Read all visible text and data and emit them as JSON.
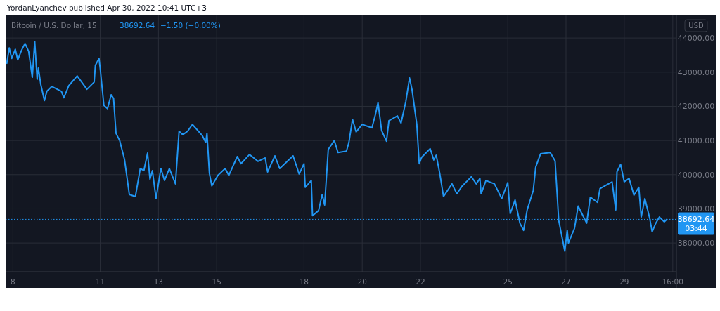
{
  "chart_data": {
    "type": "line",
    "title": "Bitcoin / U.S. Dollar, 15",
    "ylabel": "USD",
    "annotations": [
      "YordanLyanchev published Apr 30, 2022 10:41 UTC+3",
      "38692.64",
      "−1.50 (−0.00%)",
      "03:44"
    ],
    "xlim": [
      "2022-04-07T18:00",
      "2022-04-30T19:00"
    ],
    "xticks": [
      {
        "value": "2022-04-08",
        "label": "8"
      },
      {
        "value": "2022-04-11",
        "label": "11"
      },
      {
        "value": "2022-04-13",
        "label": "13"
      },
      {
        "value": "2022-04-15",
        "label": "15"
      },
      {
        "value": "2022-04-18",
        "label": "18"
      },
      {
        "value": "2022-04-20",
        "label": "20"
      },
      {
        "value": "2022-04-22",
        "label": "22"
      },
      {
        "value": "2022-04-25",
        "label": "25"
      },
      {
        "value": "2022-04-27",
        "label": "27"
      },
      {
        "value": "2022-04-29",
        "label": "29"
      },
      {
        "value": "2022-04-30T16:00",
        "label": "16:00"
      }
    ],
    "ylim": [
      37160,
      44660
    ],
    "yticks": [
      {
        "value": 38000,
        "label": "38000.00"
      },
      {
        "value": 39000,
        "label": "39000.00"
      },
      {
        "value": 40000,
        "label": "40000.00"
      },
      {
        "value": 41000,
        "label": "41000.00"
      },
      {
        "value": 42000,
        "label": "42000.00"
      },
      {
        "value": 43000,
        "label": "43000.00"
      },
      {
        "value": 44000,
        "label": "44000.00"
      }
    ],
    "grid": true,
    "line_style": "solid",
    "marker": "none",
    "ref_lines": [
      {
        "axis": "y",
        "value": 38692.64,
        "label": "38692.64",
        "color": "#2196f3",
        "line_style": "dotted"
      }
    ],
    "series": [
      {
        "color": "#2196f3",
        "x": [
          "2022-04-07T19:00",
          "2022-04-07T21:00",
          "2022-04-07T23:00",
          "2022-04-08T02:00",
          "2022-04-08T04:00",
          "2022-04-08T07:00",
          "2022-04-08T10:00",
          "2022-04-08T13:00",
          "2022-04-08T16:00",
          "2022-04-08T18:00",
          "2022-04-08T20:00",
          "2022-04-08T21:00",
          "2022-04-08T23:00",
          "2022-04-09T02:00",
          "2022-04-09T04:00",
          "2022-04-09T08:00",
          "2022-04-09T16:00",
          "2022-04-09T18:00",
          "2022-04-09T22:00",
          "2022-04-10T05:00",
          "2022-04-10T13:00",
          "2022-04-10T19:00",
          "2022-04-10T20:00",
          "2022-04-10T23:00",
          "2022-04-11T00:00",
          "2022-04-11T03:00",
          "2022-04-11T06:00",
          "2022-04-11T09:00",
          "2022-04-11T11:00",
          "2022-04-11T13:00",
          "2022-04-11T16:00",
          "2022-04-11T20:00",
          "2022-04-12T00:00",
          "2022-04-12T05:00",
          "2022-04-12T09:00",
          "2022-04-12T12:00",
          "2022-04-12T15:00",
          "2022-04-12T17:00",
          "2022-04-12T19:00",
          "2022-04-12T22:00",
          "2022-04-13T02:00",
          "2022-04-13T05:00",
          "2022-04-13T09:00",
          "2022-04-13T14:00",
          "2022-04-13T17:00",
          "2022-04-13T20:00",
          "2022-04-14T00:00",
          "2022-04-14T04:00",
          "2022-04-14T12:00",
          "2022-04-14T15:00",
          "2022-04-14T16:00",
          "2022-04-14T18:00",
          "2022-04-14T20:00",
          "2022-04-15T01:00",
          "2022-04-15T07:00",
          "2022-04-15T10:00",
          "2022-04-15T17:00",
          "2022-04-15T20:00",
          "2022-04-16T03:00",
          "2022-04-16T10:00",
          "2022-04-16T16:00",
          "2022-04-16T18:00",
          "2022-04-17T00:00",
          "2022-04-17T04:00",
          "2022-04-17T15:00",
          "2022-04-17T20:00",
          "2022-04-18T00:00",
          "2022-04-18T01:00",
          "2022-04-18T06:00",
          "2022-04-18T07:00",
          "2022-04-18T12:00",
          "2022-04-18T15:00",
          "2022-04-18T17:00",
          "2022-04-18T20:00",
          "2022-04-19T01:00",
          "2022-04-19T04:00",
          "2022-04-19T11:00",
          "2022-04-19T13:00",
          "2022-04-19T16:00",
          "2022-04-19T19:00",
          "2022-04-20T00:00",
          "2022-04-20T08:00",
          "2022-04-20T11:00",
          "2022-04-20T13:00",
          "2022-04-20T16:00",
          "2022-04-20T20:00",
          "2022-04-20T22:00",
          "2022-04-21T05:00",
          "2022-04-21T08:00",
          "2022-04-21T12:00",
          "2022-04-21T15:00",
          "2022-04-21T17:00",
          "2022-04-21T21:00",
          "2022-04-21T23:00",
          "2022-04-22T01:00",
          "2022-04-22T08:00",
          "2022-04-22T11:00",
          "2022-04-22T13:00",
          "2022-04-22T16:00",
          "2022-04-22T19:00",
          "2022-04-23T02:00",
          "2022-04-23T06:00",
          "2022-04-23T10:00",
          "2022-04-23T18:00",
          "2022-04-23T22:00",
          "2022-04-24T01:00",
          "2022-04-24T02:00",
          "2022-04-24T06:00",
          "2022-04-24T13:00",
          "2022-04-24T19:00",
          "2022-04-25T00:00",
          "2022-04-25T02:00",
          "2022-04-25T06:00",
          "2022-04-25T10:00",
          "2022-04-25T13:00",
          "2022-04-25T16:00",
          "2022-04-25T21:00",
          "2022-04-25T23:00",
          "2022-04-26T03:00",
          "2022-04-26T11:00",
          "2022-04-26T15:00",
          "2022-04-26T18:00",
          "2022-04-26T23:00",
          "2022-04-27T01:00",
          "2022-04-27T02:00",
          "2022-04-27T07:00",
          "2022-04-27T10:00",
          "2022-04-27T17:00",
          "2022-04-27T20:00",
          "2022-04-28T02:00",
          "2022-04-28T04:00",
          "2022-04-28T11:00",
          "2022-04-28T14:00",
          "2022-04-28T17:00",
          "2022-04-28T18:00",
          "2022-04-28T21:00",
          "2022-04-29T00:00",
          "2022-04-29T04:00",
          "2022-04-29T08:00",
          "2022-04-29T12:00",
          "2022-04-29T14:00",
          "2022-04-29T17:00",
          "2022-04-29T21:00",
          "2022-04-29T23:00",
          "2022-04-30T02:00",
          "2022-04-30T05:00",
          "2022-04-30T09:00",
          "2022-04-30T11:00"
        ],
        "values": [
          43260,
          43710,
          43400,
          43670,
          43360,
          43630,
          43840,
          43610,
          42850,
          43900,
          42790,
          43120,
          42640,
          42170,
          42440,
          42580,
          42440,
          42250,
          42600,
          42890,
          42500,
          42710,
          43200,
          43400,
          43100,
          42030,
          41930,
          42340,
          42230,
          41210,
          41000,
          40450,
          39420,
          39360,
          40180,
          40120,
          40630,
          39870,
          40120,
          39300,
          40180,
          39830,
          40180,
          39730,
          41270,
          41170,
          41270,
          41470,
          41150,
          40940,
          41210,
          40040,
          39670,
          39980,
          40180,
          39980,
          40530,
          40320,
          40590,
          40390,
          40490,
          40080,
          40550,
          40180,
          40550,
          40020,
          40320,
          39630,
          39830,
          38800,
          38950,
          39420,
          39110,
          40740,
          41000,
          40650,
          40690,
          40940,
          41620,
          41250,
          41470,
          41370,
          41780,
          42110,
          41290,
          40980,
          41580,
          41720,
          41510,
          42150,
          42830,
          42500,
          41470,
          40320,
          40510,
          40760,
          40430,
          40570,
          40020,
          39360,
          39730,
          39440,
          39650,
          39940,
          39730,
          39890,
          39440,
          39830,
          39730,
          39300,
          39770,
          38860,
          39260,
          38580,
          38370,
          38970,
          39540,
          40220,
          40610,
          40650,
          40400,
          38660,
          37760,
          38370,
          38000,
          38430,
          39080,
          38580,
          39340,
          39190,
          39590,
          39730,
          39790,
          38970,
          40080,
          40300,
          39790,
          39890,
          39400,
          39630,
          38760,
          39300,
          38720,
          38330,
          38580,
          38760,
          38620,
          38690
        ]
      }
    ]
  }
}
